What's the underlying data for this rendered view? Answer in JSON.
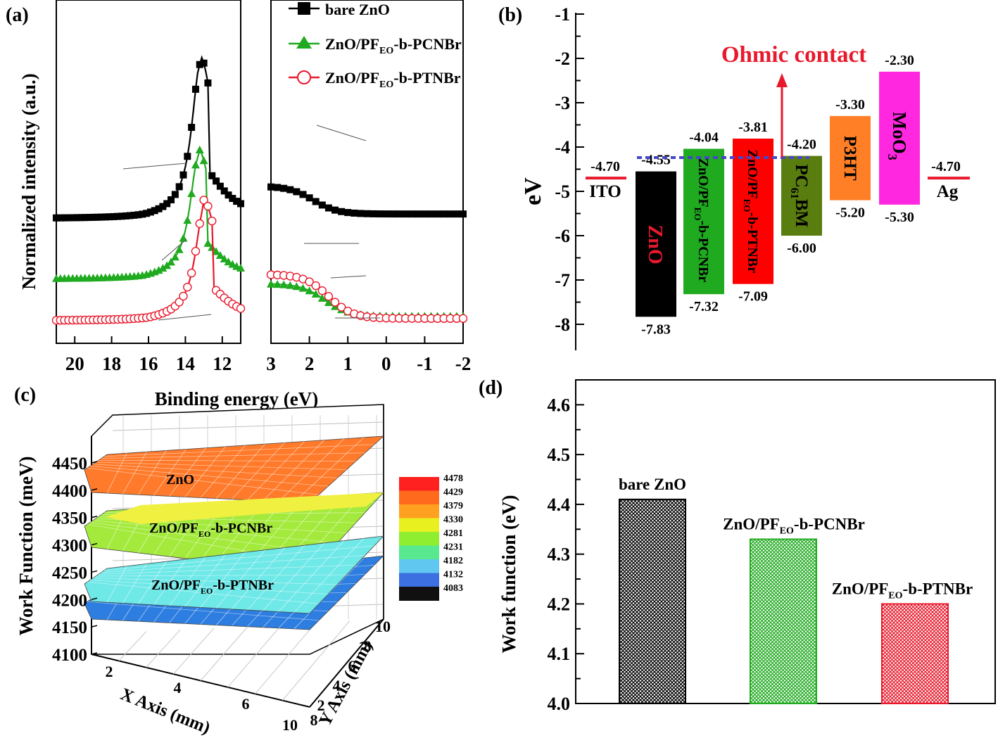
{
  "panel_labels": [
    "(a)",
    "(b)",
    "(c)",
    "(d)"
  ],
  "colors": {
    "bare_zno": "#000000",
    "pcnbr": "#1faa1f",
    "ptnbr": "#e8192c",
    "ohmic": "#e8192c",
    "dash": "#4646c8",
    "zno_level": "#000000",
    "pcnbr_level": "#1faa1f",
    "ptnbr_level": "#ff0000",
    "pcbm_level": "#5a7d0f",
    "p3ht_level": "#ff7f27",
    "moo3_level": "#ff28e0"
  },
  "chart_data": [
    {
      "type": "line",
      "panel": "(a)",
      "xlabel": "Binding energy (eV)",
      "ylabel": "Normalized intensity (a.u.)",
      "left_xlim": [
        21,
        11
      ],
      "right_xlim": [
        3,
        -2
      ],
      "left_ticks": [
        "20",
        "18",
        "16",
        "14",
        "12"
      ],
      "right_ticks": [
        "3",
        "2",
        "1",
        "0",
        "-1",
        "-2"
      ],
      "legend": [
        {
          "main": "bare ZnO",
          "sub": "",
          "post": ""
        },
        {
          "main": "ZnO/PF",
          "sub": "EO",
          "post": "-b-PCNBr"
        },
        {
          "main": "ZnO/PF",
          "sub": "EO",
          "post": "-b-PTNBr"
        }
      ],
      "series": [
        {
          "marker": "square",
          "left": {
            "baseline": 0.8,
            "peak_x": 13.2,
            "peak": 6.4,
            "offset": 3.6
          },
          "right": {
            "start": 5.8,
            "end": 4.6,
            "edge": 1.9
          }
        },
        {
          "marker": "triangle",
          "left": {
            "baseline": 0.0,
            "peak_x": 13.3,
            "peak": 5.0,
            "offset": 1.8
          },
          "right": {
            "start": 1.6,
            "end": 0.2,
            "edge": 1.6
          }
        },
        {
          "marker": "circle",
          "left": {
            "baseline": 0.0,
            "peak_x": 13.0,
            "peak": 4.6,
            "offset": 0.0
          },
          "right": {
            "start": 2.0,
            "end": 0.1,
            "edge": 1.5
          }
        }
      ]
    },
    {
      "type": "bar",
      "panel": "(b)",
      "ylabel": "eV",
      "ylim": [
        -8.5,
        -1
      ],
      "yticks": [
        "-1",
        "-2",
        "-3",
        "-4",
        "-5",
        "-6",
        "-7",
        "-8"
      ],
      "annotation": "Ohmic contact",
      "electrodes": [
        {
          "name": "ITO",
          "value": -4.7,
          "label": "-4.70"
        },
        {
          "name": "Ag",
          "value": -4.7,
          "label": "-4.70"
        }
      ],
      "levels": [
        {
          "name": "ZnO",
          "top": -4.55,
          "bottom": -7.83,
          "top_label": "-4.55",
          "bottom_label": "-7.83"
        },
        {
          "name": "ZnO/PFEO-b-PCNBr",
          "top": -4.04,
          "bottom": -7.32,
          "top_label": "-4.04",
          "bottom_label": "-7.32"
        },
        {
          "name": "ZnO/PFEO-b-PTNBr",
          "top": -3.81,
          "bottom": -7.09,
          "top_label": "-3.81",
          "bottom_label": "-7.09"
        },
        {
          "name": "PC61BM",
          "top": -4.2,
          "bottom": -6.0,
          "top_label": "-4.20",
          "bottom_label": "-6.00"
        },
        {
          "name": "P3HT",
          "top": -3.3,
          "bottom": -5.2,
          "top_label": "-3.30",
          "bottom_label": "-5.20"
        },
        {
          "name": "MoO3",
          "top": -2.3,
          "bottom": -5.3,
          "top_label": "-2.30",
          "bottom_label": "-5.30"
        }
      ],
      "level_text": {
        "zno": "ZnO",
        "pcnbr": [
          "ZnO/PF",
          "EO",
          "-b-PCNBr"
        ],
        "ptnbr": [
          "ZnO/PF",
          "EO",
          "-b-PTNBr"
        ],
        "pcbm": [
          "PC",
          "61",
          "BM"
        ],
        "p3ht": "P3HT",
        "moo3": [
          "MoO",
          "3"
        ]
      }
    },
    {
      "type": "heatmap",
      "panel": "(c)",
      "xlabel": "X Axis (mm)",
      "ylabel": "Y Axis (mm)",
      "zlabel": "Work Function (meV)",
      "zlim": [
        4100,
        4450
      ],
      "zticks": [
        "4450",
        "4400",
        "4350",
        "4300",
        "4250",
        "4200",
        "4150",
        "4100"
      ],
      "xticks": [
        "2",
        "4",
        "6",
        "8"
      ],
      "yticks": [
        "2",
        "4",
        "6",
        "8",
        "10"
      ],
      "x_end_tick": "10",
      "colorbar": [
        "4478",
        "4429",
        "4379",
        "4330",
        "4281",
        "4231",
        "4182",
        "4132",
        "4083"
      ],
      "colorbar_colors": [
        "#ff2020",
        "#ff6a1c",
        "#ffa020",
        "#e8f020",
        "#90ee30",
        "#58e890",
        "#60c8f0",
        "#3c70e0",
        "#282870",
        "#101010"
      ],
      "surfaces": [
        {
          "label": "ZnO",
          "label_sub": "",
          "label_post": "",
          "z": 4415
        },
        {
          "label": "ZnO/PF",
          "label_sub": "EO",
          "label_post": "-b-PCNBr",
          "z": 4330
        },
        {
          "label": "ZnO/PF",
          "label_sub": "EO",
          "label_post": "-b-PTNBr",
          "z": 4200
        }
      ]
    },
    {
      "type": "bar",
      "panel": "(d)",
      "ylabel": "Work function (eV)",
      "ylim": [
        4.0,
        4.65
      ],
      "yticks": [
        "4.0",
        "4.1",
        "4.2",
        "4.3",
        "4.4",
        "4.5",
        "4.6"
      ],
      "categories": [
        "bare ZnO",
        "ZnO/PFEO-b-PCNBr",
        "ZnO/PFEO-b-PTNBr"
      ],
      "values": [
        4.41,
        4.33,
        4.2
      ],
      "labels": [
        {
          "main": "bare ZnO",
          "sub": "",
          "post": ""
        },
        {
          "main": "ZnO/PF",
          "sub": "EO",
          "post": "-b-PCNBr"
        },
        {
          "main": "ZnO/PF",
          "sub": "EO",
          "post": "-b-PTNBr"
        }
      ]
    }
  ]
}
